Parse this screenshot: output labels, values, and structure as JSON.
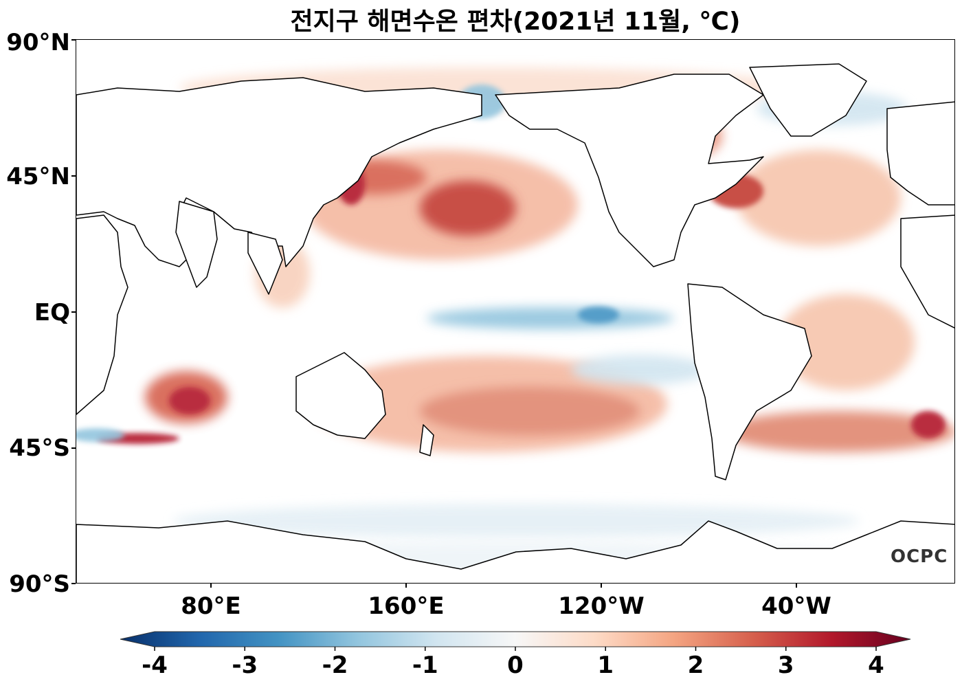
{
  "title": "전지구 해면수온 편차(2021년 11월, ℃)",
  "watermark": "OCPC",
  "lat_labels": [
    "90°N",
    "45°N",
    "EQ",
    "45°S",
    "90°S"
  ],
  "lon_labels": [
    "80°E",
    "160°E",
    "120°W",
    "40°W"
  ],
  "colorbar": {
    "ticks": [
      "-4",
      "-3",
      "-2",
      "-1",
      "0",
      "1",
      "2",
      "3",
      "4"
    ],
    "range": [
      -4,
      4
    ],
    "colors": [
      "#08306b",
      "#2166ac",
      "#4393c3",
      "#92c5de",
      "#d1e5f0",
      "#f7f7f7",
      "#fddbc7",
      "#f4a582",
      "#d6604d",
      "#b2182b",
      "#67001f"
    ],
    "extend": "both"
  }
}
